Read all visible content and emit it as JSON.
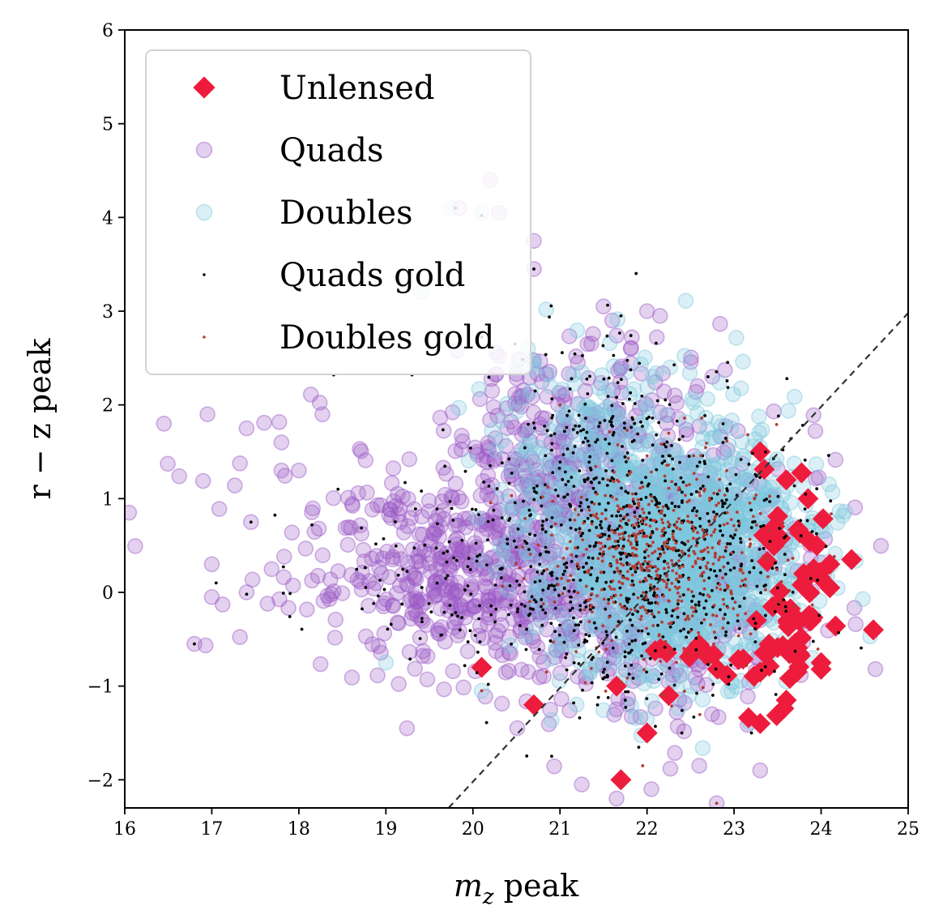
{
  "chart_data": {
    "type": "scatter",
    "title": "",
    "xlabel": "m_z peak",
    "xlabel_parts": {
      "symbol": "m",
      "sub": "z",
      "suffix": " peak"
    },
    "ylabel": "r − z peak",
    "xlim": [
      16,
      25
    ],
    "ylim": [
      -2.3,
      6
    ],
    "xticks": [
      "16",
      "17",
      "18",
      "19",
      "20",
      "21",
      "22",
      "23",
      "24",
      "25"
    ],
    "yticks": [
      "−2",
      "−1",
      "0",
      "1",
      "2",
      "3",
      "4",
      "5",
      "6"
    ],
    "xtick_values": [
      16,
      17,
      18,
      19,
      20,
      21,
      22,
      23,
      24,
      25
    ],
    "ytick_values": [
      -2,
      -1,
      0,
      1,
      2,
      3,
      4,
      5,
      6
    ],
    "grid": false,
    "legend_position": "top-left",
    "reference_line": {
      "style": "dashed",
      "color": "#333333",
      "points": [
        [
          19.72,
          -2.3
        ],
        [
          25,
          2.98
        ]
      ]
    },
    "series": [
      {
        "name": "Quads",
        "marker": "circle",
        "color": "#9b59c6",
        "seed": 11,
        "clusters": [
          {
            "n": 900,
            "cx": 21.6,
            "cy": 0.4,
            "sx": 1.0,
            "sy": 0.75
          },
          {
            "n": 260,
            "cx": 19.6,
            "cy": 0.15,
            "sx": 0.85,
            "sy": 0.5
          },
          {
            "n": 160,
            "cx": 21.2,
            "cy": 1.8,
            "sx": 0.6,
            "sy": 0.5
          },
          {
            "n": 40,
            "cx": 18.3,
            "cy": 0.7,
            "sx": 1.0,
            "sy": 0.6
          }
        ],
        "points": [
          [
            16.05,
            0.85
          ],
          [
            16.45,
            1.8
          ],
          [
            16.95,
            1.9
          ],
          [
            17.0,
            0.3
          ],
          [
            17.4,
            1.75
          ],
          [
            17.45,
            0.75
          ],
          [
            17.8,
            1.6
          ],
          [
            17.8,
            1.3
          ],
          [
            18.0,
            1.3
          ],
          [
            16.8,
            -0.55
          ],
          [
            17.0,
            -0.05
          ],
          [
            17.4,
            0.0
          ],
          [
            20.7,
            3.75
          ],
          [
            20.7,
            3.45
          ],
          [
            21.6,
            2.9
          ],
          [
            22.0,
            3.0
          ],
          [
            22.75,
            2.3
          ],
          [
            23.3,
            -1.9
          ],
          [
            22.05,
            -2.1
          ],
          [
            22.6,
            -1.85
          ],
          [
            21.65,
            -2.2
          ],
          [
            22.8,
            -2.25
          ],
          [
            21.25,
            -2.05
          ],
          [
            20.2,
            4.4
          ],
          [
            20.3,
            4.05
          ],
          [
            19.85,
            4.1
          ],
          [
            21.5,
            3.05
          ],
          [
            22.15,
            2.95
          ]
        ]
      },
      {
        "name": "Doubles",
        "marker": "circle",
        "color": "#7ec8de",
        "seed": 23,
        "clusters": [
          {
            "n": 1300,
            "cx": 22.3,
            "cy": 0.4,
            "sx": 0.75,
            "sy": 0.65
          },
          {
            "n": 140,
            "cx": 21.3,
            "cy": 1.6,
            "sx": 0.6,
            "sy": 0.5
          }
        ],
        "points": [
          [
            19.75,
            4.1
          ],
          [
            20.1,
            4.05
          ],
          [
            19.4,
            3.2
          ],
          [
            23.9,
            0.75
          ],
          [
            23.9,
            -0.7
          ],
          [
            23.6,
            -0.95
          ],
          [
            19.0,
            -0.75
          ],
          [
            20.1,
            -1.05
          ],
          [
            22.0,
            -1.35
          ],
          [
            22.5,
            -1.0
          ]
        ]
      },
      {
        "name": "Quads gold",
        "marker": "point",
        "color": "#000000",
        "seed": 37,
        "clusters": [
          {
            "n": 780,
            "cx": 21.9,
            "cy": 0.45,
            "sx": 0.9,
            "sy": 0.75
          },
          {
            "n": 90,
            "cx": 19.7,
            "cy": 0.1,
            "sx": 0.7,
            "sy": 0.45
          },
          {
            "n": 90,
            "cx": 21.4,
            "cy": 1.9,
            "sx": 0.55,
            "sy": 0.5
          }
        ],
        "points": [
          [
            17.45,
            0.75
          ],
          [
            17.05,
            0.1
          ],
          [
            17.4,
            -0.02
          ],
          [
            16.8,
            -0.55
          ],
          [
            18.15,
            0.72
          ],
          [
            18.45,
            1.1
          ],
          [
            20.7,
            3.45
          ],
          [
            21.7,
            2.95
          ],
          [
            22.7,
            2.3
          ],
          [
            24.2,
            -0.43
          ],
          [
            22.4,
            -1.5
          ],
          [
            23.2,
            -1.5
          ],
          [
            19.8,
            4.1
          ],
          [
            20.1,
            4.02
          ],
          [
            18.4,
            2.32
          ],
          [
            19.3,
            2.32
          ]
        ]
      },
      {
        "name": "Doubles gold",
        "marker": "point",
        "color": "#b33b33",
        "seed": 53,
        "clusters": [
          {
            "n": 560,
            "cx": 22.2,
            "cy": 0.35,
            "sx": 0.7,
            "sy": 0.55
          }
        ],
        "points": [
          [
            22.8,
            -2.25
          ],
          [
            20.1,
            -1.05
          ],
          [
            21.95,
            -1.85
          ],
          [
            21.0,
            2.0
          ]
        ]
      },
      {
        "name": "Unlensed",
        "marker": "diamond",
        "color": "#ee1c3c",
        "seed": 71,
        "clusters": [
          {
            "n": 45,
            "cx": 23.7,
            "cy": -0.1,
            "sx": 0.25,
            "sy": 0.6
          },
          {
            "n": 25,
            "cx": 23.0,
            "cy": -0.75,
            "sx": 0.55,
            "sy": 0.15
          }
        ],
        "points": [
          [
            20.1,
            -0.8
          ],
          [
            20.7,
            -1.2
          ],
          [
            21.7,
            -2.0
          ],
          [
            22.0,
            -1.5
          ],
          [
            21.65,
            -1.0
          ],
          [
            22.25,
            -1.1
          ],
          [
            23.3,
            -1.4
          ],
          [
            23.6,
            -1.15
          ],
          [
            24.0,
            -0.75
          ],
          [
            24.0,
            -0.82
          ],
          [
            24.1,
            0.05
          ],
          [
            24.35,
            0.35
          ],
          [
            24.6,
            -0.4
          ],
          [
            23.3,
            1.5
          ],
          [
            23.6,
            1.2
          ],
          [
            23.85,
            1.0
          ],
          [
            23.95,
            0.5
          ],
          [
            23.8,
            0.2
          ],
          [
            23.3,
            -0.85
          ]
        ]
      }
    ],
    "legend": [
      {
        "label": "Unlensed",
        "marker": "diamond",
        "color": "#ee1c3c"
      },
      {
        "label": "Quads",
        "marker": "circle",
        "color": "#9b59c6"
      },
      {
        "label": "Doubles",
        "marker": "circle",
        "color": "#7ec8de"
      },
      {
        "label": "Quads gold",
        "marker": "point",
        "color": "#000000"
      },
      {
        "label": "Doubles gold",
        "marker": "point",
        "color": "#b33b33"
      }
    ]
  }
}
